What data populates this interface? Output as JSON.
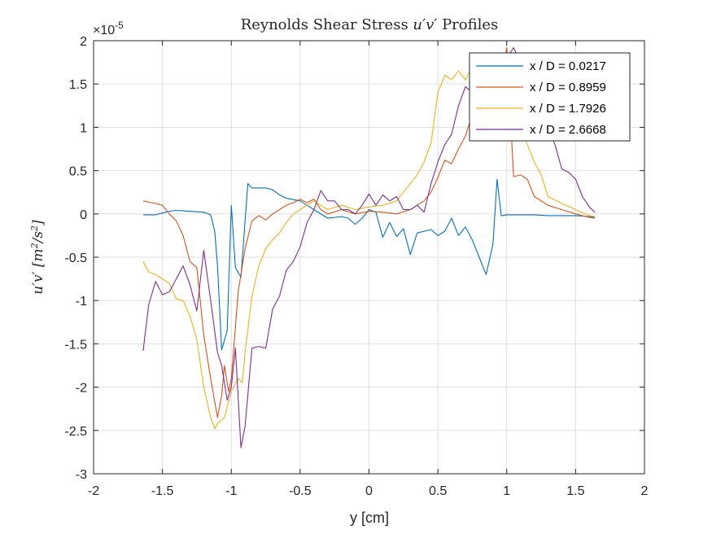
{
  "chart_data": {
    "type": "line",
    "title": "Reynolds Shear Stress u'v' Profiles",
    "title_parts": {
      "before": "Reynolds Shear Stress ",
      "math": "u′v′",
      "after": " Profiles"
    },
    "xlabel": "y [cm]",
    "ylabel": "u′v′ [m²/s²]",
    "ylabel_parts": {
      "math": "u′v′",
      "units": " [m",
      "sq1": "2",
      "slash": "/s",
      "sq2": "2",
      "close": "]"
    },
    "y_multiplier": "×10",
    "y_exponent": "-5",
    "xlim": [
      -2,
      2
    ],
    "ylim": [
      -3,
      2
    ],
    "xticks": [
      -2,
      -1.5,
      -1,
      -0.5,
      0,
      0.5,
      1,
      1.5,
      2
    ],
    "xtick_labels": [
      "-2",
      "-1.5",
      "-1",
      "-0.5",
      "0",
      "0.5",
      "1",
      "1.5",
      "2"
    ],
    "yticks": [
      -3,
      -2.5,
      -2,
      -1.5,
      -1,
      -0.5,
      0,
      0.5,
      1,
      1.5,
      2
    ],
    "ytick_labels": [
      "-3",
      "-2.5",
      "-2",
      "-1.5",
      "-1",
      "-0.5",
      "0",
      "0.5",
      "1",
      "1.5",
      "2"
    ],
    "grid": true,
    "legend_position": "top-right",
    "series": [
      {
        "name": "x / D = 0.0217",
        "color": "#0072BD",
        "x": [
          -1.64,
          -1.55,
          -1.5,
          -1.45,
          -1.4,
          -1.3,
          -1.2,
          -1.15,
          -1.12,
          -1.1,
          -1.07,
          -1.03,
          -1.0,
          -0.97,
          -0.93,
          -0.88,
          -0.85,
          -0.8,
          -0.75,
          -0.7,
          -0.65,
          -0.6,
          -0.5,
          -0.4,
          -0.3,
          -0.2,
          -0.15,
          -0.1,
          -0.05,
          0.0,
          0.05,
          0.1,
          0.15,
          0.2,
          0.25,
          0.3,
          0.35,
          0.4,
          0.45,
          0.5,
          0.55,
          0.6,
          0.65,
          0.7,
          0.75,
          0.8,
          0.85,
          0.9,
          0.93,
          0.96,
          1.0,
          1.1,
          1.2,
          1.3,
          1.4,
          1.5,
          1.6,
          1.64
        ],
        "values": [
          -0.01,
          -0.01,
          0.01,
          0.03,
          0.04,
          0.03,
          0.02,
          -0.01,
          -0.2,
          -0.6,
          -1.57,
          -1.35,
          0.1,
          -0.62,
          -0.73,
          0.35,
          0.3,
          0.3,
          0.3,
          0.28,
          0.22,
          0.18,
          0.15,
          0.05,
          -0.05,
          -0.03,
          -0.05,
          -0.12,
          -0.05,
          0.05,
          0.02,
          -0.27,
          -0.1,
          -0.26,
          -0.17,
          -0.47,
          -0.22,
          -0.2,
          -0.18,
          -0.25,
          -0.2,
          -0.05,
          -0.25,
          -0.15,
          -0.3,
          -0.5,
          -0.7,
          -0.35,
          0.4,
          -0.02,
          -0.01,
          -0.01,
          -0.01,
          -0.02,
          -0.02,
          -0.02,
          -0.03,
          -0.04
        ]
      },
      {
        "name": "x / D = 0.8959",
        "color": "#D95319",
        "x": [
          -1.64,
          -1.55,
          -1.5,
          -1.45,
          -1.4,
          -1.35,
          -1.3,
          -1.25,
          -1.2,
          -1.15,
          -1.1,
          -1.07,
          -1.05,
          -1.02,
          -1.0,
          -0.95,
          -0.9,
          -0.85,
          -0.8,
          -0.75,
          -0.7,
          -0.65,
          -0.6,
          -0.55,
          -0.5,
          -0.45,
          -0.4,
          -0.35,
          -0.3,
          -0.2,
          -0.1,
          0.0,
          0.1,
          0.2,
          0.3,
          0.4,
          0.45,
          0.5,
          0.55,
          0.6,
          0.65,
          0.7,
          0.75,
          0.8,
          0.85,
          0.9,
          0.95,
          1.0,
          1.05,
          1.1,
          1.15,
          1.2,
          1.3,
          1.4,
          1.5,
          1.6,
          1.64
        ],
        "values": [
          0.15,
          0.12,
          0.1,
          0.0,
          -0.08,
          -0.25,
          -0.55,
          -0.62,
          -1.4,
          -1.9,
          -2.35,
          -2.1,
          -1.75,
          -2.05,
          -1.9,
          -0.9,
          -0.4,
          -0.08,
          -0.02,
          -0.07,
          0.0,
          0.05,
          0.1,
          0.13,
          0.17,
          0.13,
          0.17,
          0.05,
          0.0,
          0.05,
          0.0,
          0.03,
          0.02,
          0.0,
          0.05,
          0.15,
          0.25,
          0.42,
          0.62,
          0.58,
          0.75,
          0.9,
          1.15,
          1.45,
          1.6,
          1.85,
          1.5,
          1.92,
          0.43,
          0.45,
          0.4,
          0.2,
          0.1,
          0.05,
          0.0,
          -0.04,
          -0.05
        ]
      },
      {
        "name": "x / D = 1.7926",
        "color": "#EDB120",
        "x": [
          -1.64,
          -1.6,
          -1.55,
          -1.5,
          -1.45,
          -1.4,
          -1.35,
          -1.3,
          -1.25,
          -1.2,
          -1.15,
          -1.12,
          -1.1,
          -1.05,
          -1.0,
          -0.95,
          -0.92,
          -0.9,
          -0.85,
          -0.8,
          -0.75,
          -0.7,
          -0.65,
          -0.6,
          -0.55,
          -0.5,
          -0.45,
          -0.4,
          -0.3,
          -0.2,
          -0.1,
          0.0,
          0.1,
          0.2,
          0.3,
          0.35,
          0.4,
          0.45,
          0.5,
          0.55,
          0.6,
          0.65,
          0.7,
          0.75,
          0.8,
          0.85,
          0.9,
          0.95,
          1.0,
          1.05,
          1.1,
          1.15,
          1.2,
          1.25,
          1.3,
          1.4,
          1.5,
          1.6,
          1.64
        ],
        "values": [
          -0.55,
          -0.67,
          -0.7,
          -0.75,
          -0.8,
          -0.98,
          -1.0,
          -1.18,
          -1.45,
          -2.0,
          -2.35,
          -2.48,
          -2.42,
          -2.35,
          -2.05,
          -1.9,
          -1.95,
          -1.6,
          -0.95,
          -0.6,
          -0.4,
          -0.3,
          -0.22,
          -0.1,
          0.0,
          0.05,
          0.1,
          0.15,
          0.05,
          0.1,
          0.05,
          0.08,
          0.1,
          0.15,
          0.35,
          0.45,
          0.6,
          0.82,
          1.4,
          1.6,
          1.55,
          1.65,
          1.55,
          1.7,
          1.6,
          1.7,
          1.35,
          1.62,
          1.6,
          1.4,
          1.0,
          0.8,
          0.6,
          0.45,
          0.2,
          0.12,
          0.05,
          -0.02,
          -0.03
        ]
      },
      {
        "name": "x / D = 2.6668",
        "color": "#7E2F8E",
        "x": [
          -1.64,
          -1.6,
          -1.55,
          -1.5,
          -1.45,
          -1.4,
          -1.35,
          -1.3,
          -1.25,
          -1.2,
          -1.15,
          -1.1,
          -1.07,
          -1.03,
          -1.0,
          -0.97,
          -0.93,
          -0.9,
          -0.85,
          -0.8,
          -0.75,
          -0.7,
          -0.65,
          -0.6,
          -0.55,
          -0.5,
          -0.45,
          -0.4,
          -0.35,
          -0.3,
          -0.25,
          -0.2,
          -0.15,
          -0.1,
          -0.05,
          0.0,
          0.05,
          0.1,
          0.15,
          0.2,
          0.25,
          0.3,
          0.35,
          0.4,
          0.45,
          0.5,
          0.55,
          0.6,
          0.65,
          0.7,
          0.75,
          0.8,
          0.85,
          0.9,
          0.95,
          1.0,
          1.05,
          1.1,
          1.15,
          1.2,
          1.25,
          1.3,
          1.35,
          1.4,
          1.45,
          1.5,
          1.55,
          1.6,
          1.64
        ],
        "values": [
          -1.58,
          -1.05,
          -0.78,
          -0.93,
          -0.9,
          -0.75,
          -0.6,
          -0.82,
          -1.12,
          -0.42,
          -1.0,
          -1.6,
          -1.75,
          -2.15,
          -2.0,
          -1.55,
          -2.7,
          -2.45,
          -1.55,
          -1.53,
          -1.55,
          -1.1,
          -0.95,
          -0.65,
          -0.55,
          -0.38,
          -0.1,
          0.05,
          0.27,
          0.15,
          0.15,
          0.05,
          0.05,
          0.0,
          0.1,
          0.23,
          0.1,
          0.22,
          0.15,
          0.2,
          0.05,
          0.05,
          0.1,
          0.02,
          0.35,
          0.6,
          0.8,
          0.92,
          1.25,
          1.47,
          1.4,
          1.1,
          1.05,
          1.6,
          1.8,
          1.8,
          1.92,
          1.75,
          1.7,
          1.45,
          1.4,
          1.0,
          0.8,
          0.52,
          0.48,
          0.4,
          0.2,
          0.08,
          0.02
        ]
      }
    ]
  }
}
